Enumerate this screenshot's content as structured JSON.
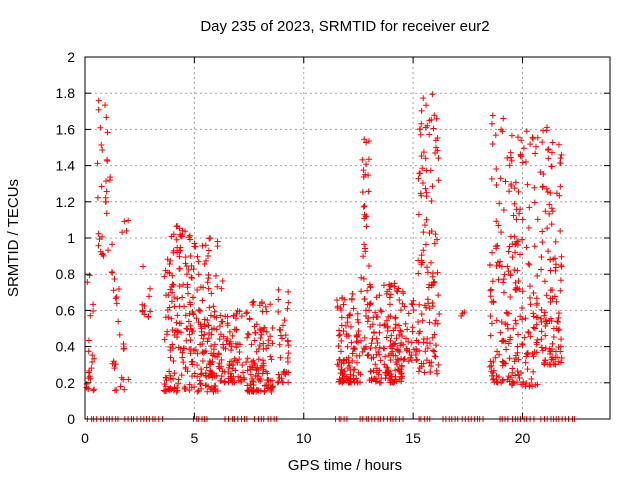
{
  "chart_data": {
    "type": "scatter",
    "title": "Day 235 of 2023, SRMTID for receiver eur2",
    "xlabel": "GPS time / hours",
    "ylabel": "SRMTID / TECUs",
    "xlim": [
      0,
      24
    ],
    "ylim": [
      0,
      2
    ],
    "xticks": [
      0,
      5,
      10,
      15,
      20
    ],
    "xtick_labels": [
      "0",
      "5",
      "10",
      "15",
      "20"
    ],
    "yticks": [
      0,
      0.2,
      0.4,
      0.6,
      0.8,
      1,
      1.2,
      1.4,
      1.6,
      1.8,
      2
    ],
    "ytick_labels": [
      "0",
      "0.2",
      "0.4",
      "0.6",
      "0.8",
      "1",
      "1.2",
      "1.4",
      "1.6",
      "1.8",
      "2"
    ],
    "grid": true,
    "marker": "+",
    "color": "#ff0000",
    "series": [
      {
        "name": "SRMTID",
        "clusters": [
          {
            "x0": 0.05,
            "x1": 0.45,
            "y0": 0.15,
            "y1": 0.8,
            "n": 22
          },
          {
            "x0": 0.55,
            "x1": 1.2,
            "y0": 0.9,
            "y1": 1.8,
            "n": 30
          },
          {
            "x0": 1.2,
            "x1": 2.0,
            "y0": 0.15,
            "y1": 1.1,
            "n": 30
          },
          {
            "x0": 2.6,
            "x1": 3.1,
            "y0": 0.55,
            "y1": 0.85,
            "n": 12
          },
          {
            "x0": 3.6,
            "x1": 4.9,
            "y0": 0.15,
            "y1": 1.07,
            "n": 150
          },
          {
            "x0": 4.9,
            "x1": 6.3,
            "y0": 0.15,
            "y1": 1.0,
            "n": 150
          },
          {
            "x0": 6.3,
            "x1": 7.3,
            "y0": 0.2,
            "y1": 0.6,
            "n": 70
          },
          {
            "x0": 7.3,
            "x1": 8.6,
            "y0": 0.15,
            "y1": 0.65,
            "n": 120
          },
          {
            "x0": 8.8,
            "x1": 9.3,
            "y0": 0.2,
            "y1": 0.72,
            "n": 35
          },
          {
            "x0": 11.5,
            "x1": 12.6,
            "y0": 0.2,
            "y1": 0.7,
            "n": 110
          },
          {
            "x0": 12.6,
            "x1": 13.0,
            "y0": 0.35,
            "y1": 1.55,
            "n": 45
          },
          {
            "x0": 13.0,
            "x1": 14.5,
            "y0": 0.2,
            "y1": 0.75,
            "n": 160
          },
          {
            "x0": 14.5,
            "x1": 15.2,
            "y0": 0.3,
            "y1": 0.75,
            "n": 35
          },
          {
            "x0": 15.2,
            "x1": 16.2,
            "y0": 0.25,
            "y1": 1.8,
            "n": 120
          },
          {
            "x0": 17.1,
            "x1": 17.4,
            "y0": 0.55,
            "y1": 0.62,
            "n": 3
          },
          {
            "x0": 18.5,
            "x1": 19.3,
            "y0": 0.2,
            "y1": 1.68,
            "n": 80
          },
          {
            "x0": 19.3,
            "x1": 20.7,
            "y0": 0.18,
            "y1": 1.6,
            "n": 160
          },
          {
            "x0": 20.8,
            "x1": 21.8,
            "y0": 0.3,
            "y1": 1.63,
            "n": 120
          }
        ],
        "zero_runs": [
          [
            0.1,
            1.6
          ],
          [
            1.8,
            3.6
          ],
          [
            4.9,
            5.7
          ],
          [
            6.4,
            7.5
          ],
          [
            7.7,
            8.9
          ],
          [
            11.4,
            12.1
          ],
          [
            12.5,
            14.6
          ],
          [
            15.2,
            15.9
          ],
          [
            16.3,
            18.3
          ],
          [
            18.9,
            20.6
          ],
          [
            20.8,
            22.5
          ]
        ]
      }
    ]
  }
}
